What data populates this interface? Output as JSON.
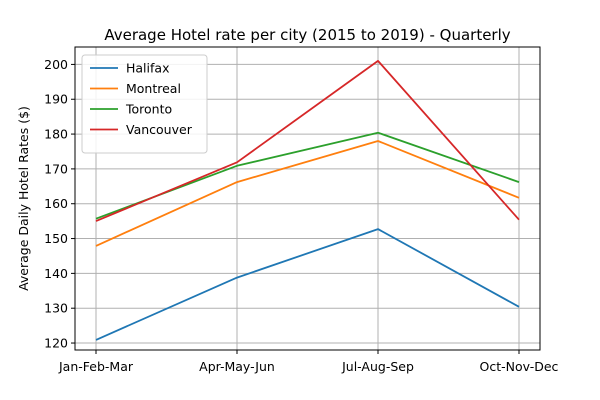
{
  "chart_data": {
    "type": "line",
    "title": "Average Hotel rate per city (2015 to 2019) - Quarterly",
    "xlabel": "",
    "ylabel": "Average Daily Hotel Rates ($)",
    "categories": [
      "Jan-Feb-Mar",
      "Apr-May-Jun",
      "Jul-Aug-Sep",
      "Oct-Nov-Dec"
    ],
    "ylim": [
      118,
      205
    ],
    "yticks": [
      120,
      130,
      140,
      150,
      160,
      170,
      180,
      190,
      200
    ],
    "grid": true,
    "legend_position": "top-left",
    "series": [
      {
        "name": "Halifax",
        "color": "#1f77b4",
        "values": [
          120.9,
          138.8,
          152.7,
          130.4
        ]
      },
      {
        "name": "Montreal",
        "color": "#ff7f0e",
        "values": [
          147.9,
          166.2,
          178.0,
          161.7
        ]
      },
      {
        "name": "Toronto",
        "color": "#2ca02c",
        "values": [
          155.7,
          170.9,
          180.4,
          166.2
        ]
      },
      {
        "name": "Vancouver",
        "color": "#d62728",
        "values": [
          155.0,
          171.9,
          201.0,
          155.4
        ]
      }
    ]
  }
}
